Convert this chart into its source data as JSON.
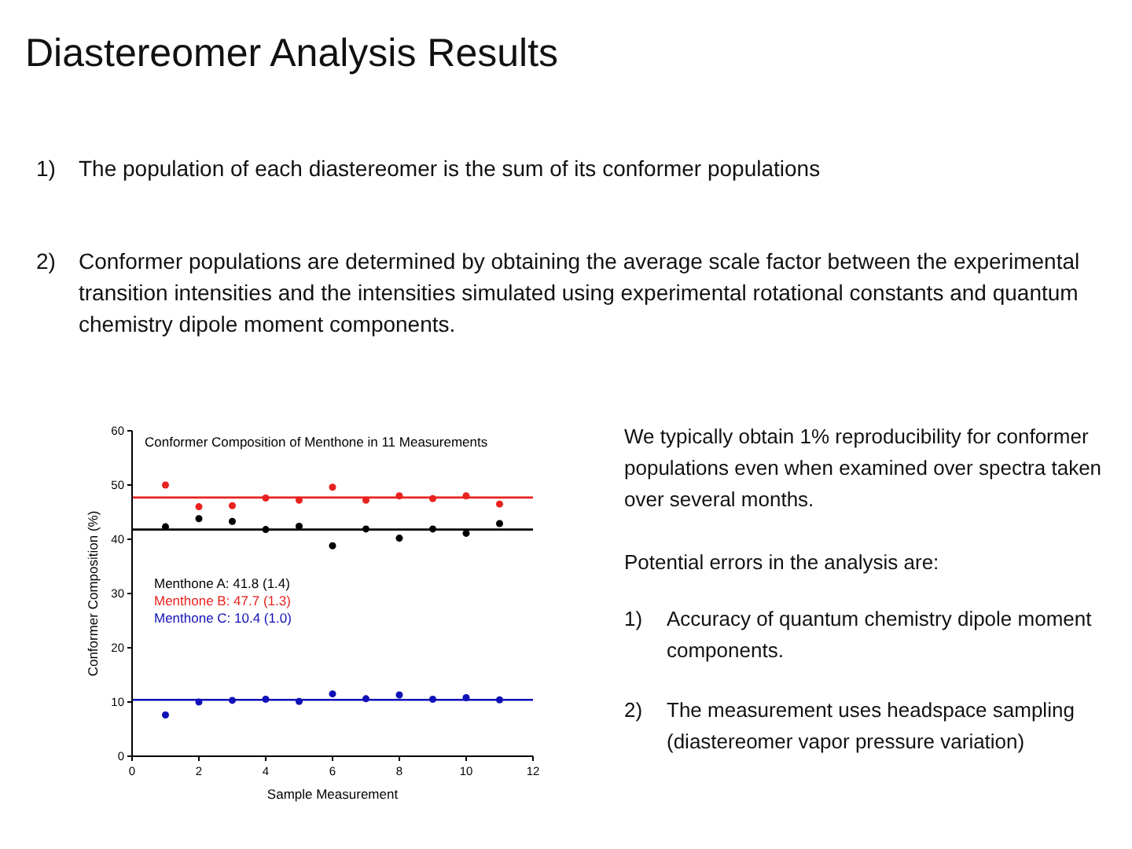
{
  "chart_data": {
    "type": "scatter",
    "title": "Conformer Composition of Menthone in 11 Measurements",
    "xlabel": "Sample Measurement",
    "ylabel": "Conformer Composition (%)",
    "x": [
      1,
      2,
      3,
      4,
      5,
      6,
      7,
      8,
      9,
      10,
      11
    ],
    "series": [
      {
        "name": "Menthone A: 41.8 (1.4)",
        "color": "#000000",
        "values": [
          42.3,
          43.8,
          43.3,
          41.8,
          42.4,
          38.8,
          41.9,
          40.2,
          41.9,
          41.1,
          42.9
        ]
      },
      {
        "name": "Menthone B: 47.7 (1.3)",
        "color": "#e8221f",
        "values": [
          50,
          46,
          46.2,
          47.6,
          47.2,
          49.6,
          47.2,
          48,
          47.5,
          48,
          46.5
        ]
      },
      {
        "name": "Menthone C: 10.4 (1.0)",
        "color": "#1010b8",
        "values": [
          7.6,
          10,
          10.3,
          10.5,
          10.1,
          11.5,
          10.6,
          11.3,
          10.5,
          10.8,
          10.4
        ]
      }
    ],
    "ref_lines": [
      {
        "axis": "y",
        "value": 41.8,
        "color": "#000000"
      },
      {
        "axis": "y",
        "value": 47.7,
        "color": "#e8221f"
      },
      {
        "axis": "y",
        "value": 10.4,
        "color": "#1010b8"
      }
    ],
    "xlim": [
      0,
      12
    ],
    "xticks": [
      0,
      2,
      4,
      6,
      8,
      10,
      12
    ],
    "ylim": [
      0,
      60
    ],
    "yticks": [
      0,
      10,
      20,
      30,
      40,
      50,
      60
    ],
    "grid": false,
    "legend": "left",
    "marker": "circle",
    "annotations": [
      "Diastereomer Analysis Results",
      "1) The population of each diastereomer is the sum of its conformer populations",
      "2) Conformer populations are determined by obtaining the average scale factor between the experimental transition intensities and the intensities simulated using experimental rotational constants and quantum chemistry dipole moment components.",
      "We typically obtain 1% reproducibility for conformer populations even when examined over spectra taken over several months.",
      "Potential errors in the analysis are:",
      "1) Accuracy of quantum chemistry dipole moment components.",
      "2) The measurement uses headspace sampling (diastereomer vapor pressure variation)"
    ]
  }
}
